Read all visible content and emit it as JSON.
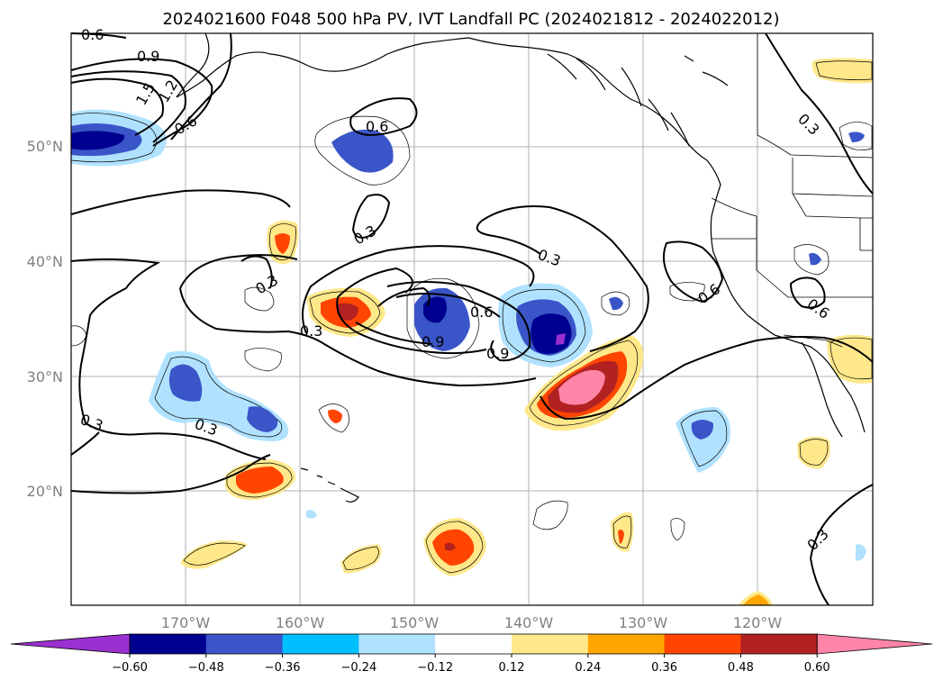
{
  "title": "2024021600 F048 500 hPa PV, IVT Landfall PC (2024021812 - 2024022012)",
  "colors": {
    "n4": "#9b30d0",
    "n3": "#000090",
    "n2": "#3a55c8",
    "n1": "#00bfff",
    "n0": "#b0e2ff",
    "neutral": "#ffffff",
    "p0": "#ffe88a",
    "p1": "#ffa500",
    "p2": "#ff4500",
    "p3": "#b22222",
    "p4": "#ff85a8"
  },
  "lon_ticks": [
    "170°W",
    "160°W",
    "150°W",
    "140°W",
    "130°W",
    "120°W"
  ],
  "lat_ticks": [
    "50°N",
    "40°N",
    "30°N",
    "20°N"
  ],
  "colorbar": {
    "labels": [
      "−0.60",
      "−0.48",
      "−0.36",
      "−0.24",
      "−0.12",
      "0.12",
      "0.24",
      "0.36",
      "0.48",
      "0.60"
    ],
    "colors": [
      "#9b30d0",
      "#000090",
      "#3a55c8",
      "#00bfff",
      "#b0e2ff",
      "#ffffff",
      "#ffe88a",
      "#ffa500",
      "#ff4500",
      "#b22222",
      "#ff85a8"
    ]
  },
  "contour_labels": [
    "0.6",
    "0.9",
    "1.5",
    "1.2",
    "0.6",
    "0.6",
    "0.3",
    "0.3",
    "0.3",
    "0.6",
    "0.9",
    "0.9",
    "0.3",
    "0.6",
    "0.6",
    "0.3",
    "0.3",
    "0.3",
    "0.3",
    "0.6"
  ]
}
